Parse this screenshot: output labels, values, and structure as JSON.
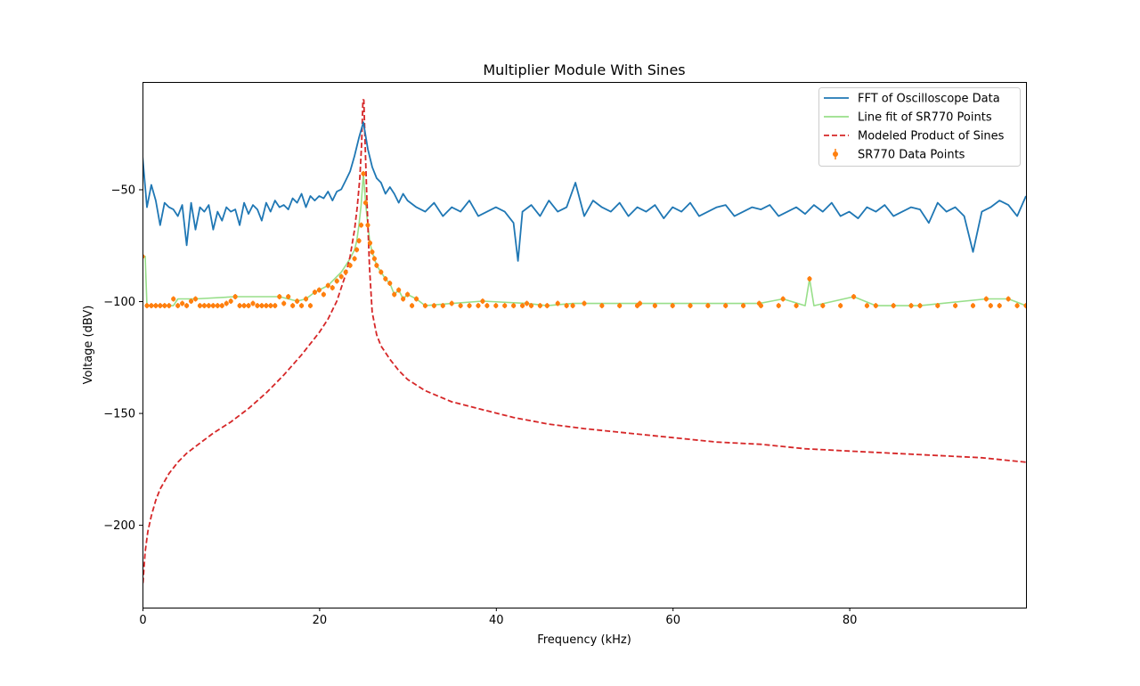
{
  "chart_data": {
    "type": "line",
    "title": "Multiplier Module With Sines",
    "xlabel": "Frequency (kHz)",
    "ylabel": "Voltage (dBV)",
    "xlim": [
      0,
      100
    ],
    "ylim": [
      -237,
      -2
    ],
    "xticks": [
      0,
      20,
      40,
      60,
      80
    ],
    "yticks": [
      -50,
      -100,
      -150,
      -200
    ],
    "xtick_labels": [
      "0",
      "20",
      "40",
      "60",
      "80"
    ],
    "ytick_labels": [
      "−50",
      "−100",
      "−150",
      "−200"
    ],
    "grid": false,
    "legend_position": "top-right",
    "series": [
      {
        "name": "FFT of Oscilloscope Data",
        "style": "solid",
        "color": "#1f77b4",
        "x": [
          0,
          0.5,
          1,
          1.5,
          2,
          2.5,
          3,
          3.5,
          4,
          4.5,
          5,
          5.5,
          6,
          6.5,
          7,
          7.5,
          8,
          8.5,
          9,
          9.5,
          10,
          10.5,
          11,
          11.5,
          12,
          12.5,
          13,
          13.5,
          14,
          14.5,
          15,
          15.5,
          16,
          16.5,
          17,
          17.5,
          18,
          18.5,
          19,
          19.5,
          20,
          20.5,
          21,
          21.5,
          22,
          22.5,
          23,
          23.5,
          24,
          24.5,
          25,
          25.5,
          26,
          26.5,
          27,
          27.5,
          28,
          28.5,
          29,
          29.5,
          30,
          31,
          32,
          33,
          34,
          35,
          36,
          37,
          38,
          39,
          40,
          41,
          42,
          42.5,
          43,
          44,
          45,
          46,
          47,
          48,
          49,
          50,
          51,
          52,
          53,
          54,
          55,
          56,
          57,
          58,
          59,
          60,
          61,
          62,
          63,
          64,
          65,
          66,
          67,
          68,
          69,
          70,
          71,
          72,
          73,
          74,
          75,
          76,
          77,
          78,
          79,
          80,
          81,
          82,
          83,
          84,
          85,
          86,
          87,
          88,
          89,
          90,
          91,
          92,
          93,
          94,
          95,
          96,
          97,
          98,
          99,
          100
        ],
        "values": [
          -35,
          -58,
          -48,
          -55,
          -66,
          -56,
          -58,
          -59,
          -62,
          -57,
          -75,
          -56,
          -68,
          -58,
          -60,
          -57,
          -68,
          -60,
          -64,
          -58,
          -60,
          -59,
          -66,
          -56,
          -61,
          -57,
          -59,
          -64,
          -56,
          -60,
          -55,
          -58,
          -57,
          -59,
          -54,
          -56,
          -52,
          -58,
          -53,
          -55,
          -53,
          -54,
          -51,
          -55,
          -51,
          -50,
          -46,
          -42,
          -35,
          -27,
          -20,
          -32,
          -40,
          -45,
          -47,
          -52,
          -49,
          -52,
          -56,
          -52,
          -55,
          -58,
          -60,
          -56,
          -62,
          -58,
          -60,
          -55,
          -62,
          -60,
          -58,
          -60,
          -65,
          -82,
          -60,
          -57,
          -62,
          -55,
          -60,
          -58,
          -47,
          -62,
          -55,
          -58,
          -60,
          -56,
          -62,
          -58,
          -60,
          -57,
          -63,
          -58,
          -60,
          -56,
          -62,
          -60,
          -58,
          -57,
          -62,
          -60,
          -58,
          -59,
          -57,
          -62,
          -60,
          -58,
          -61,
          -57,
          -60,
          -56,
          -62,
          -60,
          -63,
          -58,
          -60,
          -57,
          -62,
          -60,
          -58,
          -59,
          -65,
          -56,
          -60,
          -58,
          -62,
          -78,
          -60,
          -58,
          -55,
          -57,
          -62,
          -53
        ]
      },
      {
        "name": "Line fit of SR770 Points",
        "style": "solid",
        "color": "#98df8a",
        "x": [
          0,
          0.3,
          0.5,
          3.5,
          4,
          6,
          10.5,
          12.3,
          15.5,
          16.5,
          17.5,
          18.5,
          19.5,
          20,
          20.5,
          21,
          21.5,
          22,
          22.5,
          23,
          23.5,
          24,
          24.25,
          24.5,
          24.75,
          25,
          25.25,
          25.5,
          25.75,
          26,
          26.25,
          26.5,
          27,
          27.5,
          28,
          28.5,
          29,
          29.5,
          30,
          31,
          32,
          35,
          38.5,
          43.5,
          45.8,
          48.7,
          56.3,
          69.8,
          72.5,
          75,
          75.5,
          76,
          80.5,
          83,
          88,
          95.5,
          98,
          100
        ],
        "values": [
          -80,
          -80,
          -102,
          -102,
          -99,
          -99,
          -98,
          -98,
          -98,
          -99,
          -100,
          -99,
          -96,
          -95,
          -94,
          -93,
          -91,
          -89,
          -87,
          -84,
          -81,
          -77,
          -73,
          -66,
          -57,
          -43,
          -56,
          -66,
          -74,
          -78,
          -81,
          -84,
          -87,
          -90,
          -92,
          -97,
          -95,
          -99,
          -97,
          -99,
          -102,
          -101,
          -100,
          -101,
          -102,
          -101,
          -101,
          -101,
          -99,
          -102,
          -90,
          -102,
          -98,
          -102,
          -102,
          -99,
          -99,
          -102
        ]
      },
      {
        "name": "Modeled Product of Sines",
        "style": "dashed",
        "color": "#d62728",
        "x": [
          0.05,
          0.3,
          0.6,
          1,
          1.5,
          2,
          3,
          4,
          5,
          6,
          8,
          10,
          12,
          14,
          16,
          18,
          20,
          21,
          22,
          23,
          23.5,
          24,
          24.3,
          24.6,
          24.8,
          24.95,
          25.05,
          25.2,
          25.4,
          25.7,
          26,
          26.5,
          27,
          28,
          29,
          30,
          32,
          35,
          38,
          42,
          46,
          50,
          55,
          60,
          65,
          70,
          75,
          80,
          85,
          90,
          95,
          100
        ],
        "values": [
          -226,
          -212,
          -203,
          -196,
          -189,
          -184,
          -177,
          -172,
          -168,
          -165,
          -159,
          -154,
          -148,
          -141,
          -133,
          -124,
          -114,
          -108,
          -100,
          -88,
          -80,
          -68,
          -58,
          -45,
          -30,
          -10,
          -10,
          -30,
          -55,
          -85,
          -105,
          -115,
          -120,
          -126,
          -131,
          -135,
          -140,
          -145,
          -148,
          -152,
          -155,
          -157,
          -159,
          -161,
          -163,
          -164,
          -166,
          -167,
          -168,
          -169,
          -170,
          -172
        ]
      },
      {
        "name": "SR770 Data Points",
        "style": "markers",
        "color": "#ff7f0e",
        "x": [
          0,
          0.5,
          1,
          1.5,
          2,
          2.5,
          3,
          3.5,
          4,
          4.5,
          5,
          5.5,
          6,
          6.5,
          7,
          7.5,
          8,
          8.5,
          9,
          9.5,
          10,
          10.5,
          11,
          11.5,
          12,
          12.5,
          13,
          13.5,
          14,
          14.5,
          15,
          15.5,
          16,
          16.5,
          17,
          17.5,
          18,
          18.5,
          19,
          19.5,
          20,
          20.5,
          21,
          21.5,
          22,
          22.5,
          23,
          23.5,
          24,
          24.25,
          24.5,
          24.75,
          25,
          25.25,
          25.5,
          25.75,
          26,
          26.25,
          26.5,
          27,
          27.5,
          28,
          28.5,
          29,
          29.5,
          30,
          30.5,
          31,
          32,
          33,
          34,
          35,
          36,
          37,
          38,
          38.5,
          39,
          40,
          41,
          42,
          43,
          43.5,
          44,
          45,
          45.8,
          47,
          48,
          48.7,
          50,
          52,
          54,
          56,
          56.3,
          58,
          60,
          62,
          64,
          66,
          68,
          69.8,
          70,
          72,
          72.5,
          74,
          75.5,
          77,
          79,
          80.5,
          82,
          83,
          85,
          87,
          88,
          90,
          92,
          94,
          95.5,
          96,
          97,
          98,
          99,
          100
        ],
        "values": [
          -80,
          -102,
          -102,
          -102,
          -102,
          -102,
          -102,
          -99,
          -102,
          -101,
          -102,
          -100,
          -99,
          -102,
          -102,
          -102,
          -102,
          -102,
          -102,
          -101,
          -100,
          -98,
          -102,
          -102,
          -102,
          -101,
          -102,
          -102,
          -102,
          -102,
          -102,
          -98,
          -101,
          -98,
          -102,
          -100,
          -102,
          -99,
          -102,
          -96,
          -95,
          -97,
          -93,
          -94,
          -91,
          -89,
          -87,
          -84,
          -81,
          -77,
          -73,
          -66,
          -43,
          -56,
          -66,
          -74,
          -78,
          -81,
          -84,
          -87,
          -90,
          -92,
          -97,
          -95,
          -99,
          -97,
          -102,
          -99,
          -102,
          -102,
          -102,
          -101,
          -102,
          -102,
          -102,
          -100,
          -102,
          -102,
          -102,
          -102,
          -102,
          -101,
          -102,
          -102,
          -102,
          -101,
          -102,
          -102,
          -101,
          -102,
          -102,
          -102,
          -101,
          -102,
          -102,
          -102,
          -102,
          -102,
          -102,
          -101,
          -102,
          -102,
          -99,
          -102,
          -90,
          -102,
          -102,
          -98,
          -102,
          -102,
          -102,
          -102,
          -102,
          -102,
          -102,
          -102,
          -99,
          -102,
          -102,
          -99,
          -102,
          -102
        ]
      }
    ]
  }
}
